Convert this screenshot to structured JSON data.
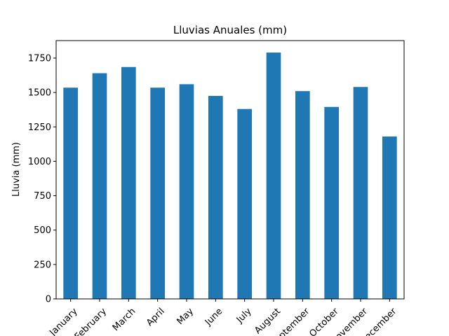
{
  "chart_data": {
    "type": "bar",
    "title": "Lluvias Anuales (mm)",
    "xlabel": "",
    "ylabel": "Lluvia (mm)",
    "categories": [
      "January",
      "February",
      "March",
      "April",
      "May",
      "June",
      "July",
      "August",
      "September",
      "October",
      "November",
      "December"
    ],
    "values": [
      1535,
      1640,
      1685,
      1535,
      1560,
      1475,
      1380,
      1790,
      1510,
      1395,
      1540,
      1180
    ],
    "ylim": [
      0,
      1877
    ],
    "yticks": [
      0,
      250,
      500,
      750,
      1000,
      1250,
      1500,
      1750
    ],
    "bar_color": "#1f77b4",
    "grid": false,
    "legend": "none",
    "xtick_rotation": 45
  }
}
